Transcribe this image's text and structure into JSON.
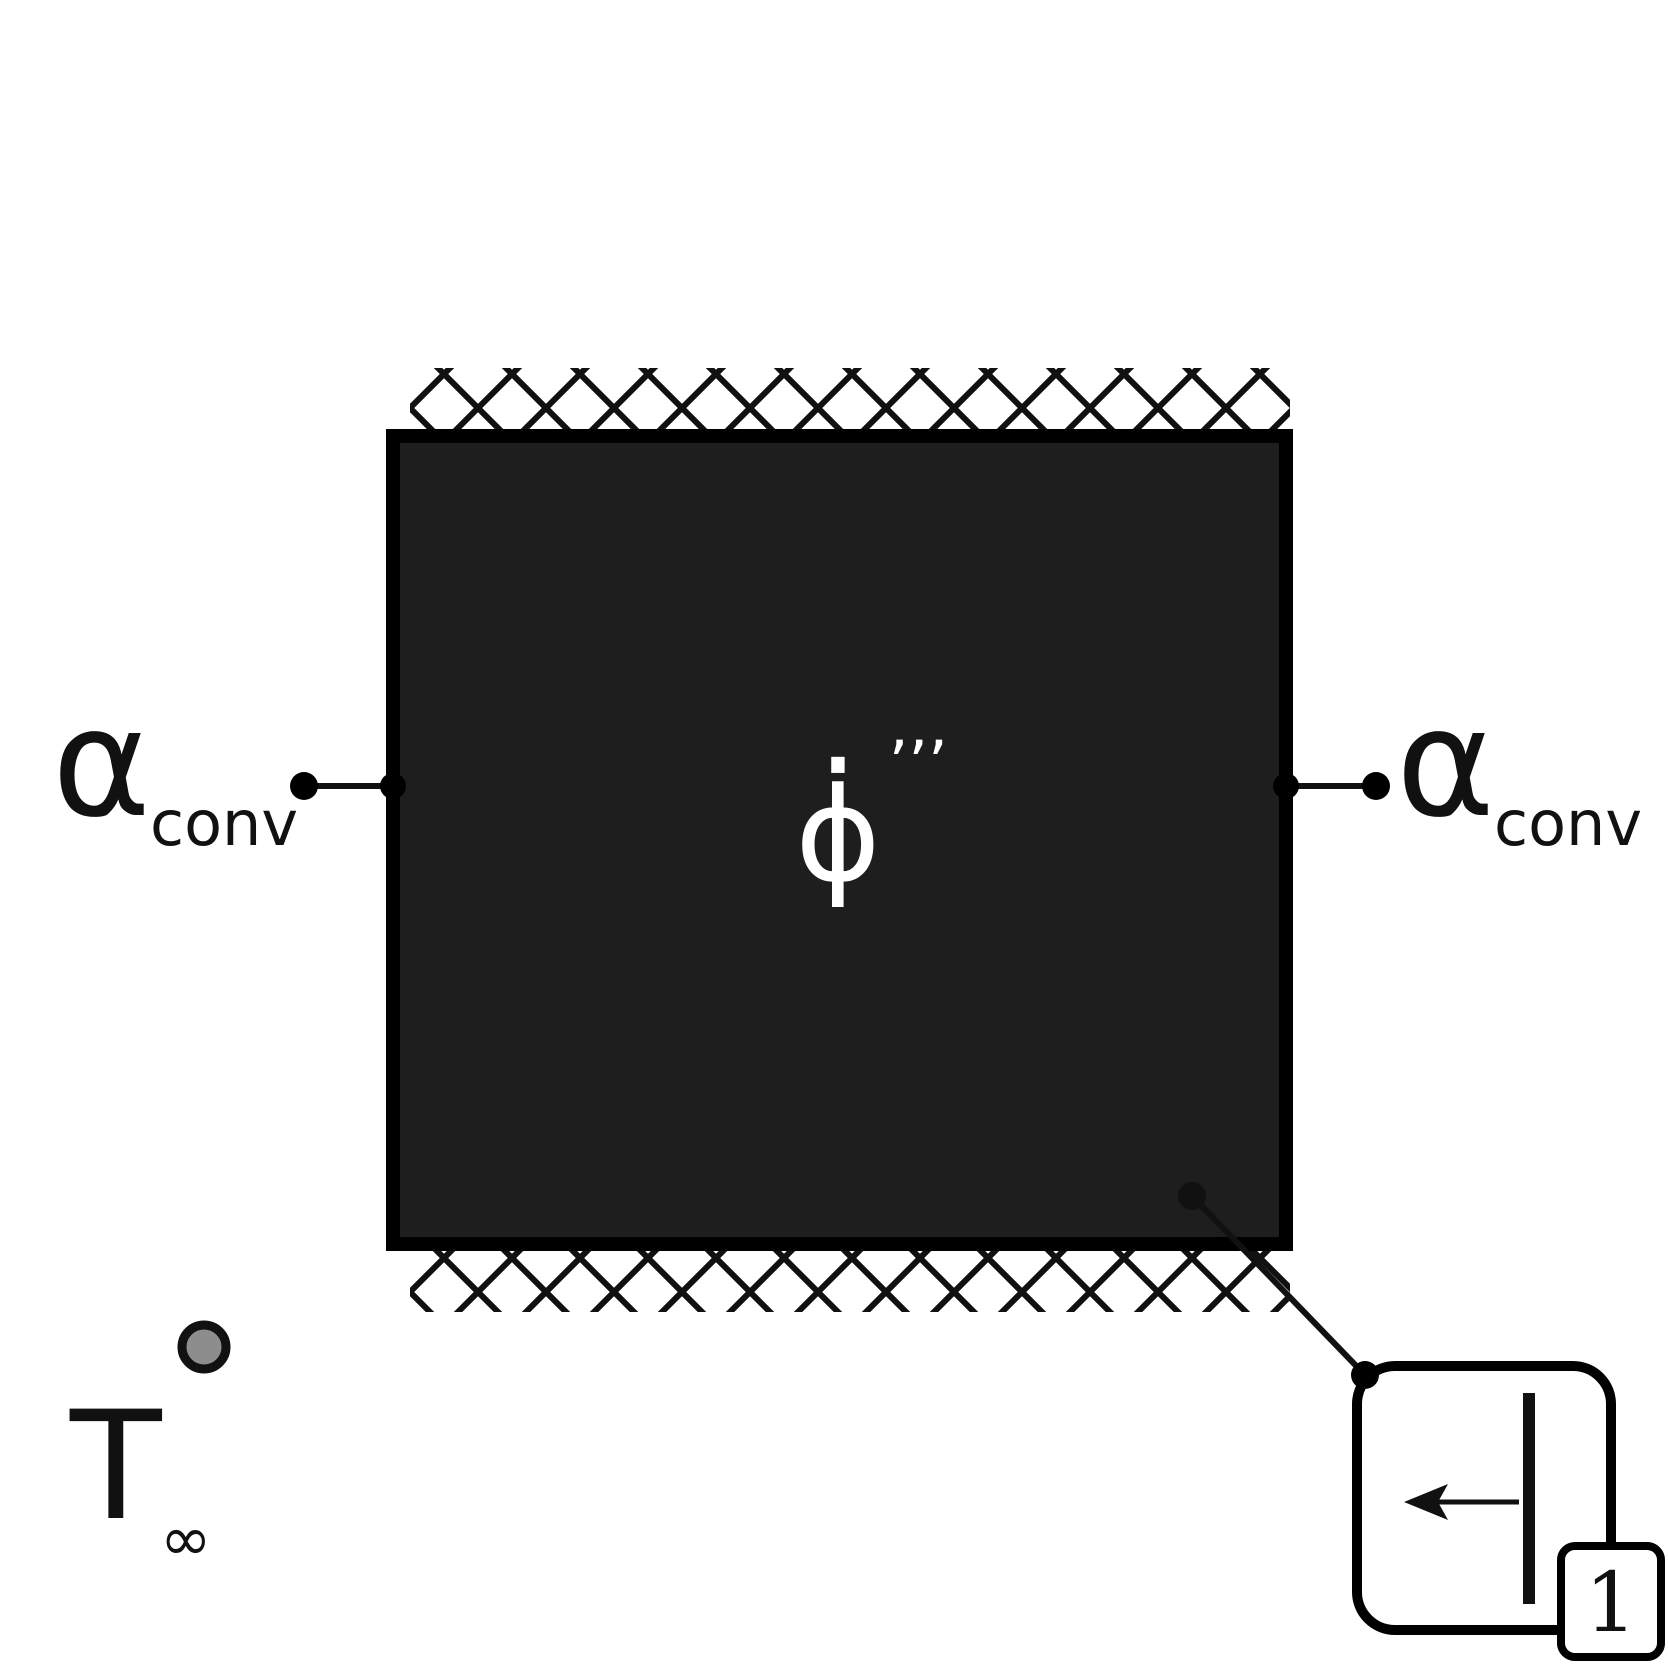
{
  "diagram": {
    "colors": {
      "background": "#ffffff",
      "block_fill": "#1e1e1e",
      "line": "#111111",
      "ambient_node_fill": "#8d8d8d",
      "label_on_block": "#ffffff"
    },
    "heat_generation": {
      "symbol": "ϕ",
      "dot": "·",
      "superscript": "’’’"
    },
    "left_convection": {
      "symbol": "α",
      "subscript": "conv"
    },
    "right_convection": {
      "symbol": "α",
      "subscript": "conv"
    },
    "ambient": {
      "symbol": "T",
      "subscript": "∞"
    },
    "source_block": {
      "icon": "arrow-left-icon",
      "badge": "1"
    },
    "insulation": {
      "icon": "cross-hatch-pattern"
    }
  }
}
